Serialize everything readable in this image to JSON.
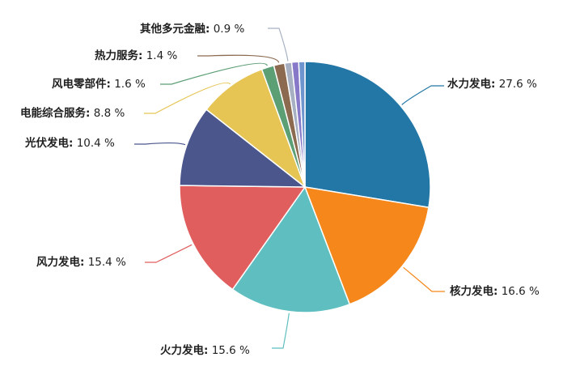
{
  "chart_data": {
    "type": "pie",
    "title": "",
    "unit": "%",
    "start_angle_deg": 90,
    "direction": "clockwise",
    "legend": "none",
    "slices": [
      {
        "name": "水力发电",
        "value": 27.6,
        "color": "#2277a6"
      },
      {
        "name": "核力发电",
        "value": 16.6,
        "color": "#f5871b"
      },
      {
        "name": "火力发电",
        "value": 15.6,
        "color": "#5fbfc0"
      },
      {
        "name": "风力发电",
        "value": 15.4,
        "color": "#e05e5e"
      },
      {
        "name": "光伏发电",
        "value": 10.4,
        "color": "#4b568c"
      },
      {
        "name": "电能综合服务",
        "value": 8.8,
        "color": "#e6c555"
      },
      {
        "name": "风电零部件",
        "value": 1.6,
        "color": "#5c9f75"
      },
      {
        "name": "热力服务",
        "value": 1.4,
        "color": "#8c6a4f"
      },
      {
        "name": "其他多元金融",
        "value": 0.9,
        "color": "#a6b0c2"
      },
      {
        "name": "",
        "value": 0.9,
        "color": "#8878c8"
      },
      {
        "name": "",
        "value": 0.8,
        "color": "#6f95cf"
      }
    ]
  }
}
